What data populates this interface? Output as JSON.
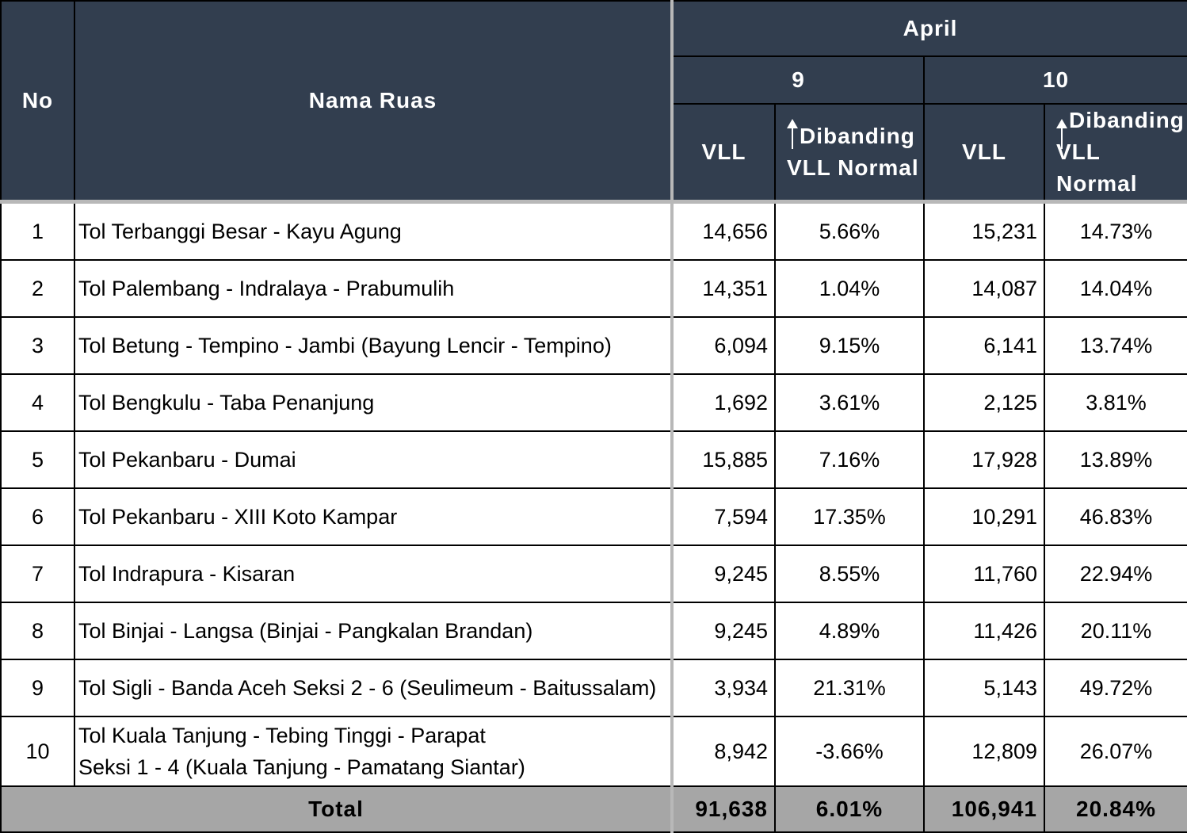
{
  "header": {
    "no": "No",
    "nama_ruas": "Nama Ruas",
    "month": "April",
    "day1": "9",
    "day2": "10",
    "vll": "VLL",
    "dibanding_1": "Dibanding",
    "dibanding_2": "VLL Normal"
  },
  "rows": [
    {
      "no": "1",
      "name": "Tol Terbanggi Besar - Kayu Agung",
      "name2": "",
      "vll9": "14,656",
      "pct9": "5.66%",
      "vll10": "15,231",
      "pct10": "14.73%"
    },
    {
      "no": "2",
      "name": "Tol Palembang - Indralaya - Prabumulih",
      "name2": "",
      "vll9": "14,351",
      "pct9": "1.04%",
      "vll10": "14,087",
      "pct10": "14.04%"
    },
    {
      "no": "3",
      "name": "Tol Betung - Tempino - Jambi (Bayung Lencir - Tempino)",
      "name2": "",
      "vll9": "6,094",
      "pct9": "9.15%",
      "vll10": "6,141",
      "pct10": "13.74%"
    },
    {
      "no": "4",
      "name": "Tol Bengkulu - Taba Penanjung",
      "name2": "",
      "vll9": "1,692",
      "pct9": "3.61%",
      "vll10": "2,125",
      "pct10": "3.81%"
    },
    {
      "no": "5",
      "name": "Tol Pekanbaru - Dumai",
      "name2": "",
      "vll9": "15,885",
      "pct9": "7.16%",
      "vll10": "17,928",
      "pct10": "13.89%"
    },
    {
      "no": "6",
      "name": "Tol Pekanbaru  - XIII Koto Kampar",
      "name2": "",
      "vll9": "7,594",
      "pct9": "17.35%",
      "vll10": "10,291",
      "pct10": "46.83%"
    },
    {
      "no": "7",
      "name": "Tol Indrapura - Kisaran",
      "name2": "",
      "vll9": "9,245",
      "pct9": "8.55%",
      "vll10": "11,760",
      "pct10": "22.94%"
    },
    {
      "no": "8",
      "name": "Tol Binjai - Langsa (Binjai - Pangkalan Brandan)",
      "name2": "",
      "vll9": "9,245",
      "pct9": "4.89%",
      "vll10": "11,426",
      "pct10": "20.11%"
    },
    {
      "no": "9",
      "name": "Tol Sigli - Banda Aceh Seksi 2 - 6 (Seulimeum - Baitussalam)",
      "name2": "",
      "vll9": "3,934",
      "pct9": "21.31%",
      "vll10": "5,143",
      "pct10": "49.72%"
    },
    {
      "no": "10",
      "name": "Tol Kuala Tanjung - Tebing Tinggi - Parapat",
      "name2": "Seksi 1 - 4 (Kuala Tanjung - Pamatang Siantar)",
      "vll9": "8,942",
      "pct9": "-3.66%",
      "vll10": "12,809",
      "pct10": "26.07%"
    }
  ],
  "total": {
    "label": "Total",
    "vll9": "91,638",
    "pct9": "6.01%",
    "vll10": "106,941",
    "pct10": "20.84%"
  },
  "colors": {
    "header_bg": "#323e4f",
    "total_bg": "#a6a6a6"
  }
}
